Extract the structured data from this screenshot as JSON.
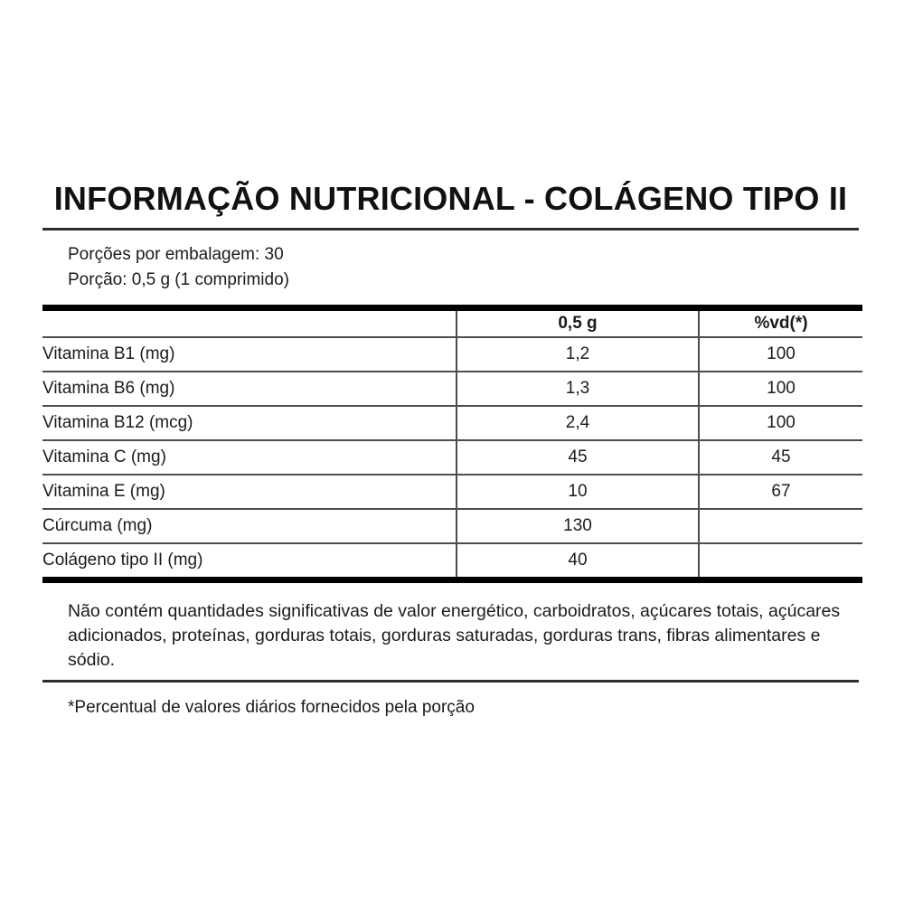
{
  "title": "INFORMAÇÃO NUTRICIONAL - COLÁGENO TIPO II",
  "serving_info": {
    "servings_per_package": "Porções por embalagem: 30",
    "serving_size": "Porção: 0,5 g (1 comprimido)"
  },
  "table": {
    "columns": [
      "",
      "0,5 g",
      "%vd(*)"
    ],
    "rows": [
      {
        "label": "Vitamina B1 (mg)",
        "amount": "1,2",
        "dv": "100"
      },
      {
        "label": "Vitamina B6 (mg)",
        "amount": "1,3",
        "dv": "100"
      },
      {
        "label": "Vitamina B12 (mcg)",
        "amount": "2,4",
        "dv": "100"
      },
      {
        "label": "Vitamina C (mg)",
        "amount": "45",
        "dv": "45"
      },
      {
        "label": "Vitamina E (mg)",
        "amount": "10",
        "dv": "67"
      },
      {
        "label": "Cúrcuma (mg)",
        "amount": "130",
        "dv": ""
      },
      {
        "label": "Colágeno tipo II (mg)",
        "amount": "40",
        "dv": ""
      }
    ]
  },
  "notes": {
    "no_significant_amounts": "Não contém quantidades significativas de valor energético, carboidratos, açúcares totais, açúcares adicionados, proteínas, gorduras totais, gorduras saturadas, gorduras trans, fibras alimentares e sódio.",
    "footnote": "*Percentual de valores diários fornecidos pela porção"
  },
  "colors": {
    "thick_rule": "#000000",
    "thin_rule": "#4d4d4d",
    "divider_rule": "#2e2e2e",
    "text": "#1b1b1b",
    "background": "#ffffff"
  }
}
